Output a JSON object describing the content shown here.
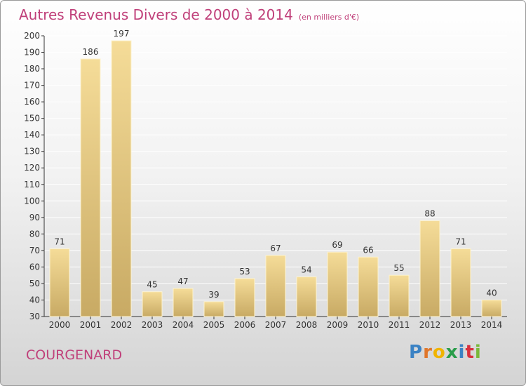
{
  "header": {
    "title": "Autres Revenus Divers de 2000 à 2014",
    "unit": "(en milliers d'€)"
  },
  "footer": {
    "commune": "COURGENARD",
    "brand": "Proxiti",
    "brand_colors": [
      "#3b82c4",
      "#e0762a",
      "#f0b400",
      "#2a9d4a",
      "#3b82c4",
      "#d9303e",
      "#7ab83a"
    ]
  },
  "colors": {
    "title": "#c0407a",
    "bar_top": "#f5dc98",
    "bar_bottom": "#c8aa64",
    "bar_edge": "#fdf3d0",
    "grid": "#ffffff",
    "axis": "#333333"
  },
  "chart_data": {
    "type": "bar",
    "categories": [
      "2000",
      "2001",
      "2002",
      "2003",
      "2004",
      "2005",
      "2006",
      "2007",
      "2008",
      "2009",
      "2010",
      "2011",
      "2012",
      "2013",
      "2014"
    ],
    "values": [
      71,
      186,
      197,
      45,
      47,
      39,
      53,
      67,
      54,
      69,
      66,
      55,
      88,
      71,
      40
    ],
    "data_labels": [
      "71",
      "186",
      "197",
      "45",
      "47",
      "39",
      "53",
      "67",
      "54",
      "69",
      "66",
      "55",
      "88",
      "71",
      "40"
    ],
    "ylim": [
      30,
      200
    ],
    "yticks": [
      "30",
      "40",
      "50",
      "60",
      "70",
      "80",
      "90",
      "100",
      "110",
      "120",
      "130",
      "140",
      "150",
      "160",
      "170",
      "180",
      "190",
      "200"
    ],
    "grid": true,
    "xlabel": "",
    "ylabel": ""
  }
}
